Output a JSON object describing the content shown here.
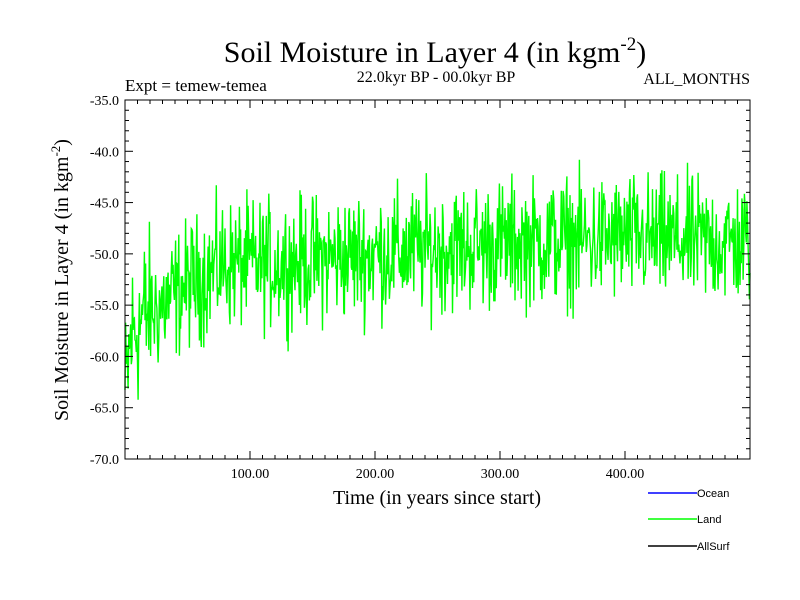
{
  "chart_data": {
    "type": "line",
    "title_main": "Soil Moisture in Layer 4 (in kgm",
    "title_sup": "-2",
    "title_close": ")",
    "subtitle_left": "Expt = temew-temea",
    "subtitle_center": "22.0kyr BP - 00.0kyr BP",
    "subtitle_right": "ALL_MONTHS",
    "xlabel": "Time (in years since start)",
    "ylabel_main": "Soil Moisture in Layer 4 (in kgm",
    "ylabel_sup": "-2",
    "ylabel_close": ")",
    "xlim": [
      0,
      500
    ],
    "ylim": [
      -70.0,
      -35.0
    ],
    "x_ticks": [
      100,
      200,
      300,
      400
    ],
    "x_tick_labels": [
      "100.00",
      "200.00",
      "300.00",
      "400.00"
    ],
    "y_ticks": [
      -35,
      -40,
      -45,
      -50,
      -55,
      -60,
      -65,
      -70
    ],
    "y_tick_labels": [
      "-35.0",
      "-40.0",
      "-45.0",
      "-50.0",
      "-55.0",
      "-60.0",
      "-65.0",
      "-70.0"
    ],
    "legend": [
      {
        "name": "Ocean",
        "color": "#0000ff"
      },
      {
        "name": "Land",
        "color": "#00ff00"
      },
      {
        "name": "AllSurf",
        "color": "#000000"
      }
    ],
    "series": [
      {
        "name": "Land",
        "color": "#00ff00",
        "description_values": {
          "x_start": 0,
          "x_end": 500,
          "trend_x": [
            0,
            5,
            15,
            30,
            50,
            80,
            120,
            200,
            300,
            400,
            500
          ],
          "trend_y": [
            -64,
            -58,
            -56,
            -55,
            -53,
            -51,
            -51,
            -50,
            -49,
            -48.5,
            -49
          ],
          "amplitude": 4.5
        }
      }
    ]
  }
}
